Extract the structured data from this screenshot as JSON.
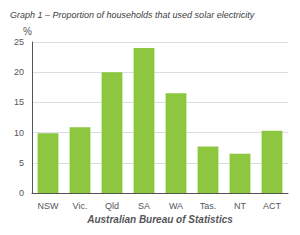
{
  "chart_data": {
    "type": "bar",
    "title": "Graph 1 – Proportion of households that used solar electricity",
    "xlabel": "Australian Bureau of Statistics",
    "ylabel": "%",
    "categories": [
      "NSW",
      "Vic.",
      "Qld",
      "SA",
      "WA",
      "Tas.",
      "NT",
      "ACT"
    ],
    "values": [
      9.9,
      10.9,
      20.0,
      24.0,
      16.5,
      7.7,
      6.5,
      10.3
    ],
    "color": "#8dc63f",
    "ylim": [
      0,
      25
    ],
    "yticks": [
      0,
      5,
      10,
      15,
      20,
      25
    ],
    "grid": true
  }
}
